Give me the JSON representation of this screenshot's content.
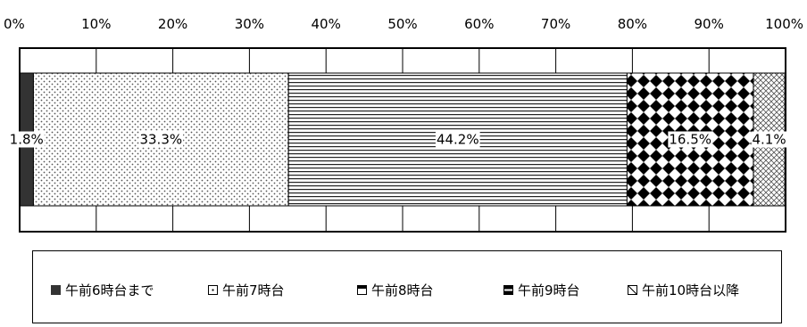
{
  "chart_data": {
    "type": "bar",
    "orientation": "horizontal",
    "stacked": "percent",
    "xlim": [
      0,
      100
    ],
    "x_ticks": [
      "0%",
      "10%",
      "20%",
      "30%",
      "40%",
      "50%",
      "60%",
      "70%",
      "80%",
      "90%",
      "100%"
    ],
    "grid": true,
    "legend_position": "bottom",
    "series": [
      {
        "name": "午前6時台まで",
        "value": 1.8,
        "label": "1.8%",
        "pattern": "solid",
        "color": "#333333"
      },
      {
        "name": "午前7時台",
        "value": 33.3,
        "label": "33.3%",
        "pattern": "dots",
        "color": "#555555"
      },
      {
        "name": "午前8時台",
        "value": 44.2,
        "label": "44.2%",
        "pattern": "horizontal-lines",
        "color": "#333333"
      },
      {
        "name": "午前9時台",
        "value": 16.5,
        "label": "16.5%",
        "pattern": "diamonds",
        "color": "#000000"
      },
      {
        "name": "午前10時台以降",
        "value": 4.1,
        "label": "4.1%",
        "pattern": "crosshatch",
        "color": "#555555"
      }
    ]
  }
}
